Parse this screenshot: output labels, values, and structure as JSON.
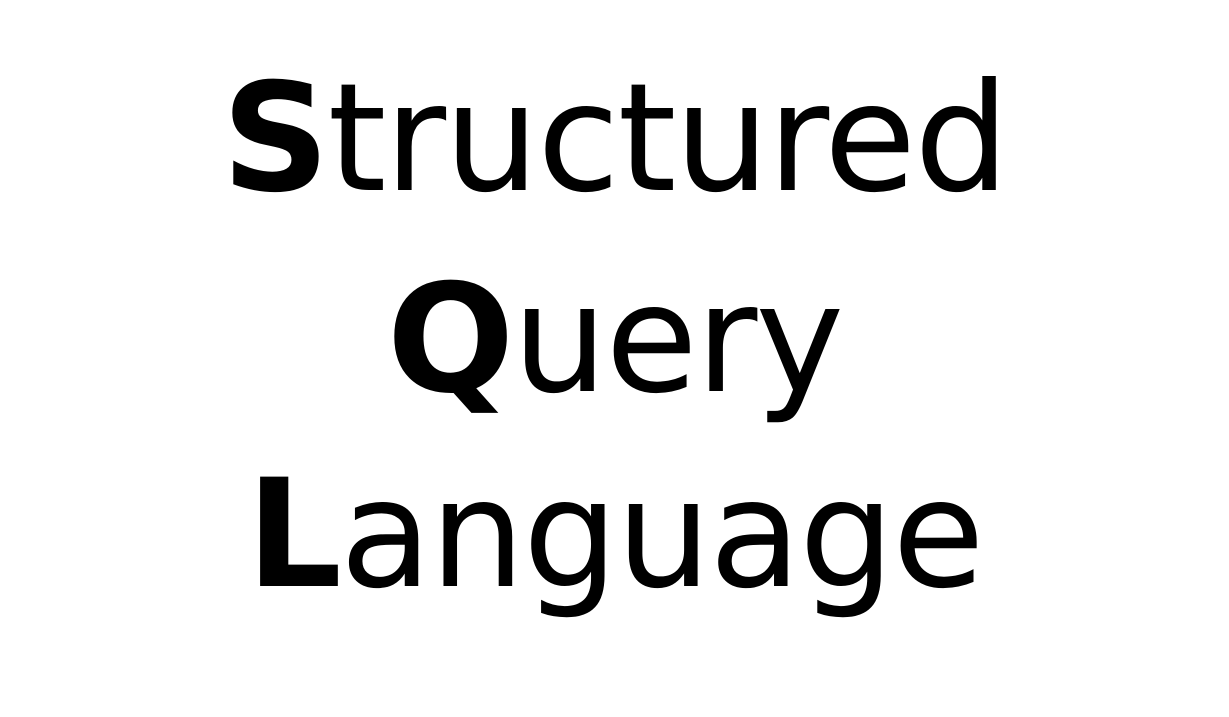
{
  "acronym": {
    "lines": [
      {
        "initial": "S",
        "rest": "tructured"
      },
      {
        "initial": "Q",
        "rest": "uery"
      },
      {
        "initial": "L",
        "rest": "anguage"
      }
    ]
  },
  "colors": {
    "background": "#ffffff",
    "text": "#000000"
  }
}
